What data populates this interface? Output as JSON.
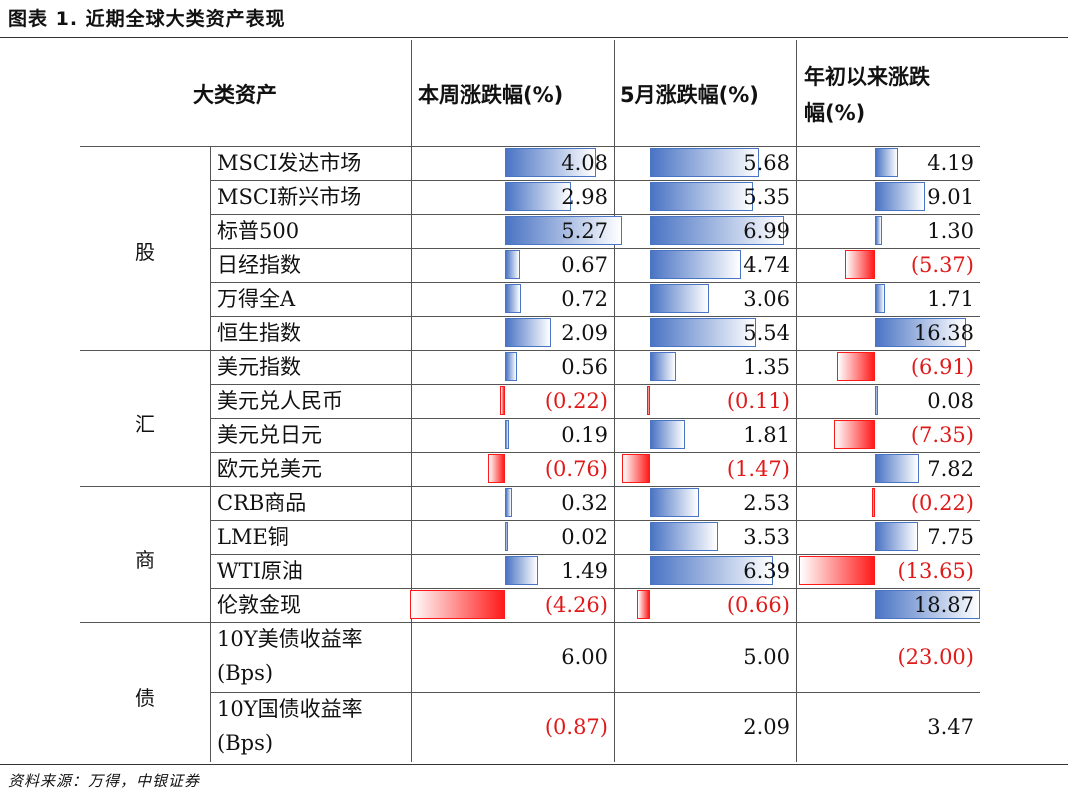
{
  "title": "图表 1. 近期全球大类资产表现",
  "source": "资料来源：万得，中银证券",
  "headers": {
    "asset": "大类资产",
    "week": "本周涨跌幅(%)",
    "month": "5月涨跌幅(%)",
    "ytd_line1": "年初以来涨跌",
    "ytd_line2": "幅(%)"
  },
  "categories": [
    {
      "label": "股"
    },
    {
      "label": "汇"
    },
    {
      "label": "商"
    },
    {
      "label": "债"
    }
  ],
  "rows": [
    {
      "name": "MSCI发达市场",
      "week": 4.08,
      "month": 5.68,
      "ytd": 4.19,
      "week_text": "4.08",
      "month_text": "5.68",
      "ytd_text": "4.19"
    },
    {
      "name": "MSCI新兴市场",
      "week": 2.98,
      "month": 5.35,
      "ytd": 9.01,
      "week_text": "2.98",
      "month_text": "5.35",
      "ytd_text": "9.01"
    },
    {
      "name": "标普500",
      "week": 5.27,
      "month": 6.99,
      "ytd": 1.3,
      "week_text": "5.27",
      "month_text": "6.99",
      "ytd_text": "1.30"
    },
    {
      "name": "日经指数",
      "week": 0.67,
      "month": 4.74,
      "ytd": -5.37,
      "week_text": "0.67",
      "month_text": "4.74",
      "ytd_text": "(5.37)"
    },
    {
      "name": "万得全A",
      "week": 0.72,
      "month": 3.06,
      "ytd": 1.71,
      "week_text": "0.72",
      "month_text": "3.06",
      "ytd_text": "1.71"
    },
    {
      "name": "恒生指数",
      "week": 2.09,
      "month": 5.54,
      "ytd": 16.38,
      "week_text": "2.09",
      "month_text": "5.54",
      "ytd_text": "16.38"
    },
    {
      "name": "美元指数",
      "week": 0.56,
      "month": 1.35,
      "ytd": -6.91,
      "week_text": "0.56",
      "month_text": "1.35",
      "ytd_text": "(6.91)"
    },
    {
      "name": "美元兑人民币",
      "week": -0.22,
      "month": -0.11,
      "ytd": 0.08,
      "week_text": "(0.22)",
      "month_text": "(0.11)",
      "ytd_text": "0.08"
    },
    {
      "name": "美元兑日元",
      "week": 0.19,
      "month": 1.81,
      "ytd": -7.35,
      "week_text": "0.19",
      "month_text": "1.81",
      "ytd_text": "(7.35)"
    },
    {
      "name": "欧元兑美元",
      "week": -0.76,
      "month": -1.47,
      "ytd": 7.82,
      "week_text": "(0.76)",
      "month_text": "(1.47)",
      "ytd_text": "7.82"
    },
    {
      "name": "CRB商品",
      "week": 0.32,
      "month": 2.53,
      "ytd": -0.22,
      "week_text": "0.32",
      "month_text": "2.53",
      "ytd_text": "(0.22)"
    },
    {
      "name": "LME铜",
      "week": 0.02,
      "month": 3.53,
      "ytd": 7.75,
      "week_text": "0.02",
      "month_text": "3.53",
      "ytd_text": "7.75"
    },
    {
      "name": "WTI原油",
      "week": 1.49,
      "month": 6.39,
      "ytd": -13.65,
      "week_text": "1.49",
      "month_text": "6.39",
      "ytd_text": "(13.65)"
    },
    {
      "name": "伦敦金现",
      "week": -4.26,
      "month": -0.66,
      "ytd": 18.87,
      "week_text": "(4.26)",
      "month_text": "(0.66)",
      "ytd_text": "18.87"
    }
  ],
  "bond_rows": [
    {
      "name_line1": "10Y美债收益率",
      "name_line2": "(Bps)",
      "week_text": "6.00",
      "month_text": "5.00",
      "ytd_text": "(23.00)",
      "week": 6.0,
      "month": 5.0,
      "ytd": -23.0
    },
    {
      "name_line1": "10Y国债收益率",
      "name_line2": "(Bps)",
      "week_text": "(0.87)",
      "month_text": "2.09",
      "ytd_text": "3.47",
      "week": -0.87,
      "month": 2.09,
      "ytd": 3.47
    }
  ],
  "bar_scale": {
    "week": 4.9,
    "month": 7.5,
    "ytd": 18.87
  },
  "colors": {
    "positive": "#4a74c4",
    "negative": "#ff1a1a",
    "negative_text": "#e01a1a"
  }
}
